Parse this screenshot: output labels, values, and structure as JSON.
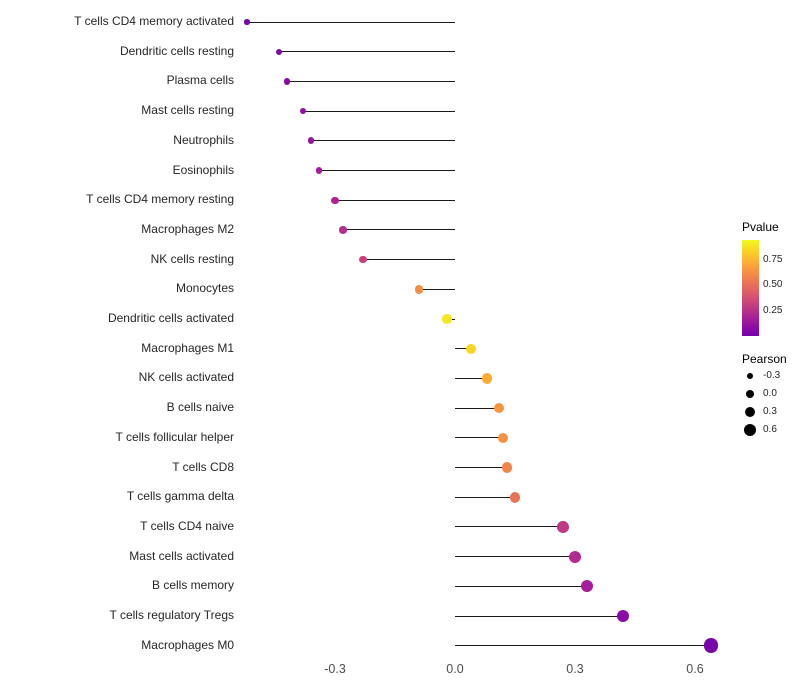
{
  "chart_data": {
    "type": "scatter",
    "subtype": "lollipop",
    "title": "",
    "xlabel": "",
    "ylabel": "",
    "grid": false,
    "background": "#ffffff",
    "xlim": [
      -0.57,
      0.68
    ],
    "x_ticks": [
      {
        "value": -0.3,
        "label": "-0.3"
      },
      {
        "value": 0.0,
        "label": "0.0"
      },
      {
        "value": 0.3,
        "label": "0.3"
      },
      {
        "value": 0.6,
        "label": "0.6"
      }
    ],
    "points": [
      {
        "label": "T cells CD4 memory activated",
        "pearson": -0.52,
        "pvalue": 0.02
      },
      {
        "label": "Dendritic cells resting",
        "pearson": -0.44,
        "pvalue": 0.05
      },
      {
        "label": "Plasma cells",
        "pearson": -0.42,
        "pvalue": 0.07
      },
      {
        "label": "Mast cells resting",
        "pearson": -0.38,
        "pvalue": 0.1
      },
      {
        "label": "Neutrophils",
        "pearson": -0.36,
        "pvalue": 0.13
      },
      {
        "label": "Eosinophils",
        "pearson": -0.34,
        "pvalue": 0.16
      },
      {
        "label": "T cells CD4 memory resting",
        "pearson": -0.3,
        "pvalue": 0.2
      },
      {
        "label": "Macrophages M2",
        "pearson": -0.28,
        "pvalue": 0.24
      },
      {
        "label": "NK cells resting",
        "pearson": -0.23,
        "pvalue": 0.32
      },
      {
        "label": "Monocytes",
        "pearson": -0.09,
        "pvalue": 0.62
      },
      {
        "label": "Dendritic cells activated",
        "pearson": -0.02,
        "pvalue": 0.9
      },
      {
        "label": "Macrophages M1",
        "pearson": 0.04,
        "pvalue": 0.85
      },
      {
        "label": "NK cells activated",
        "pearson": 0.08,
        "pvalue": 0.72
      },
      {
        "label": "B cells naive",
        "pearson": 0.11,
        "pvalue": 0.65
      },
      {
        "label": "T cells follicular helper",
        "pearson": 0.12,
        "pvalue": 0.63
      },
      {
        "label": "T cells CD8",
        "pearson": 0.13,
        "pvalue": 0.58
      },
      {
        "label": "T cells gamma delta",
        "pearson": 0.15,
        "pvalue": 0.52
      },
      {
        "label": "T cells CD4 naive",
        "pearson": 0.27,
        "pvalue": 0.28
      },
      {
        "label": "Mast cells activated",
        "pearson": 0.3,
        "pvalue": 0.22
      },
      {
        "label": "B cells memory",
        "pearson": 0.33,
        "pvalue": 0.17
      },
      {
        "label": "T cells regulatory  Tregs",
        "pearson": 0.42,
        "pvalue": 0.08
      },
      {
        "label": "Macrophages M0",
        "pearson": 0.64,
        "pvalue": 0.02
      }
    ],
    "color_legend": {
      "title": "Pvalue",
      "range": [
        0.0,
        0.95
      ],
      "ticks": [
        {
          "value": 0.75,
          "label": "0.75"
        },
        {
          "value": 0.5,
          "label": "0.50"
        },
        {
          "value": 0.25,
          "label": "0.25"
        }
      ],
      "colormap": "plasma"
    },
    "size_legend": {
      "title": "Pearson",
      "items": [
        {
          "value": -0.3,
          "label": "-0.3"
        },
        {
          "value": 0.0,
          "label": "0.0"
        },
        {
          "value": 0.3,
          "label": "0.3"
        },
        {
          "value": 0.6,
          "label": "0.6"
        }
      ]
    }
  },
  "colors": {
    "segment": "#1a1a1a",
    "axis_text": "#4d4d4d",
    "category_text": "#262626",
    "legend_dot": "#000000",
    "plasma_stops": [
      "#0d0887",
      "#41049d",
      "#6a00a8",
      "#8f0da4",
      "#b12a90",
      "#cc4778",
      "#e16462",
      "#f2844b",
      "#fca636",
      "#fcce25",
      "#f0f921"
    ]
  }
}
